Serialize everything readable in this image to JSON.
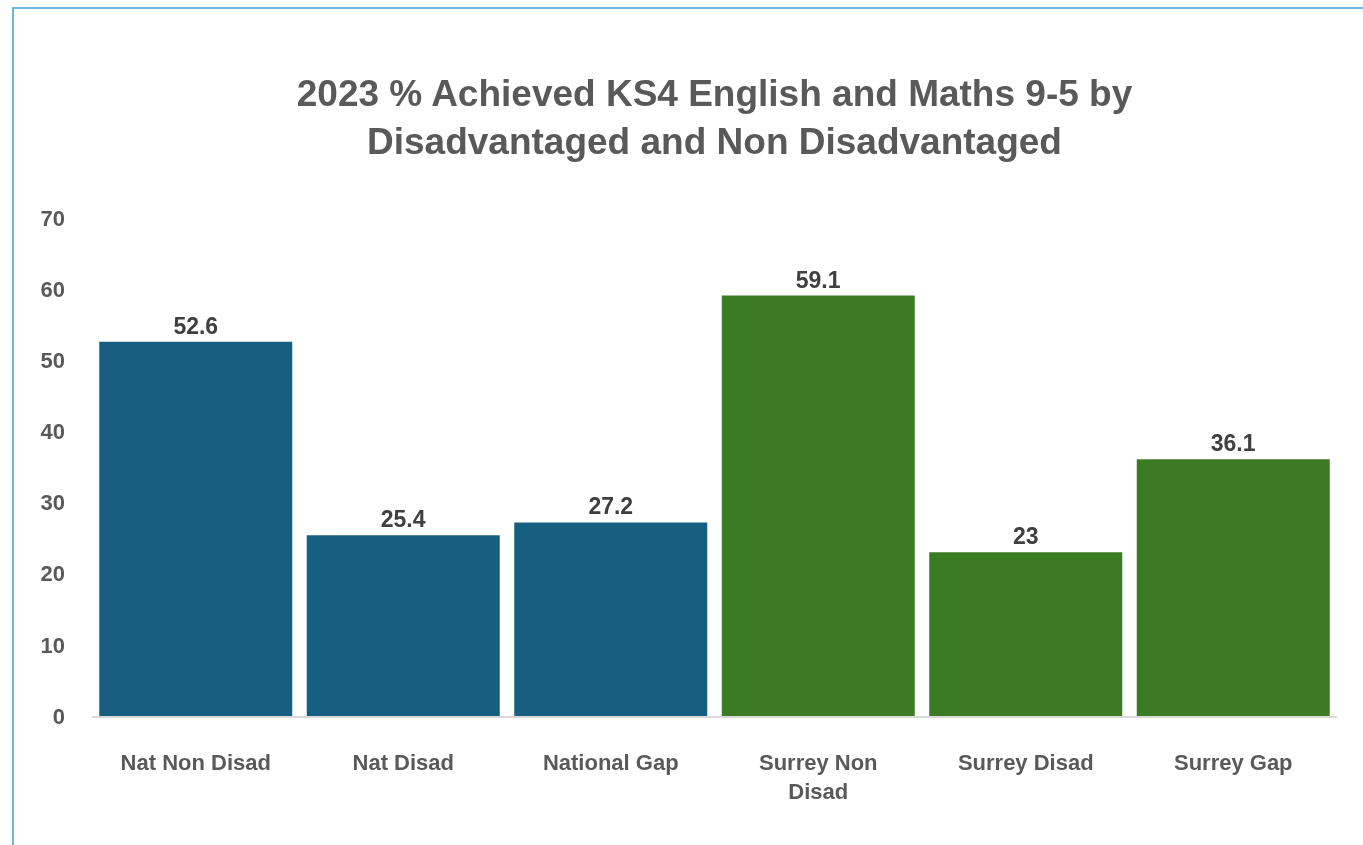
{
  "chart_data": {
    "type": "bar",
    "title": "2023 % Achieved KS4 English and Maths 9-5 by Disadvantaged and Non Disadvantaged",
    "categories": [
      "Nat Non Disad",
      "Nat Disad",
      "National Gap",
      "Surrey Non Disad",
      "Surrey Disad",
      "Surrey Gap"
    ],
    "values": [
      52.6,
      25.4,
      27.2,
      59.1,
      23,
      36.1
    ],
    "colors": [
      "#175f80",
      "#175f80",
      "#175f80",
      "#3b7b24",
      "#3b7b24",
      "#3b7b24"
    ],
    "ylim": [
      0,
      70
    ],
    "yticks": [
      0,
      10,
      20,
      30,
      40,
      50,
      60,
      70
    ],
    "grid": false,
    "data_labels": true
  }
}
